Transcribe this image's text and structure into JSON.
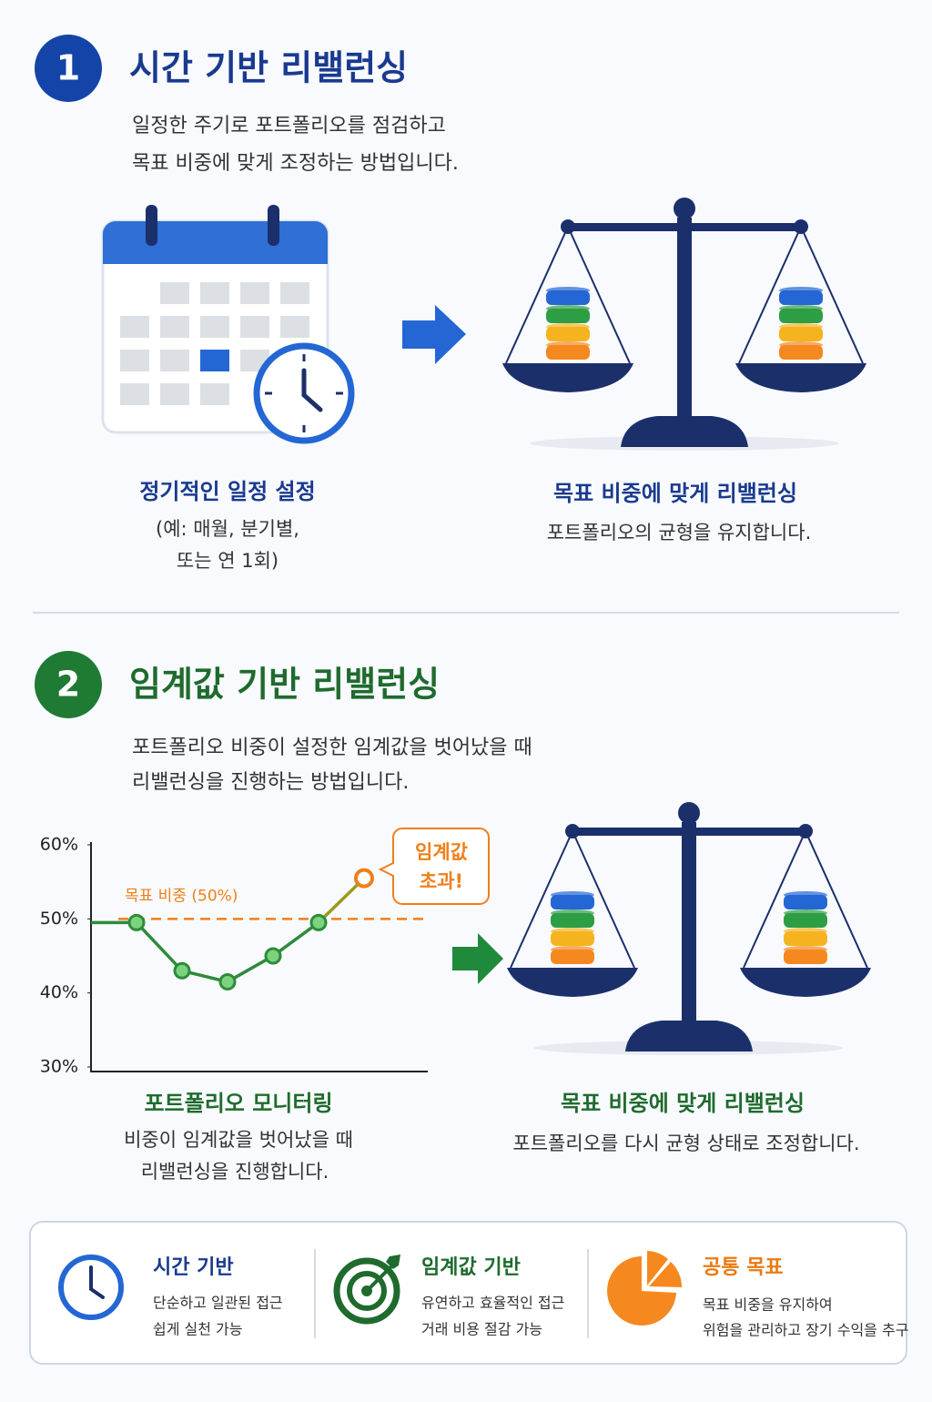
{
  "section1": {
    "number": "1",
    "title": "시간 기반 리밸런싱",
    "description": [
      "일정한 주기로 포트폴리오를 점검하고",
      "목표 비중에 맞게 조정하는 방법입니다."
    ],
    "left_caption": {
      "title": "정기적인 일정 설정",
      "lines": [
        "(예: 매월, 분기별,",
        "또는 연 1회)"
      ]
    },
    "right_caption": {
      "title": "목표 비중에 맞게 리밸런싱",
      "lines": [
        "포트폴리오의 균형을 유지합니다."
      ]
    }
  },
  "section2": {
    "number": "2",
    "title": "임계값 기반 리밸런싱",
    "description": [
      "포트폴리오 비중이 설정한 임계값을 벗어났을 때",
      "리밸런싱을 진행하는 방법입니다."
    ],
    "chart_data": {
      "type": "line",
      "categories": [
        null,
        null,
        null,
        null,
        null,
        null,
        null
      ],
      "values": [
        49.5,
        49.5,
        43,
        41.5,
        45,
        49.5,
        55.5
      ],
      "color": "#2e8b3a",
      "exceed_color": "#f07f1a",
      "threshold": 50,
      "threshold_label": "목표 비중 (50%)",
      "callout": [
        "임계값",
        "초과!"
      ],
      "ylim": [
        30,
        60
      ],
      "yticks": [
        {
          "value": 30,
          "label": "30%"
        },
        {
          "value": 40,
          "label": "40%"
        },
        {
          "value": 50,
          "label": "50%"
        },
        {
          "value": 60,
          "label": "60%"
        }
      ],
      "grid": false
    },
    "left_caption": {
      "title": "포트폴리오 모니터링",
      "lines": [
        "비중이 임계값을 벗어났을 때",
        "리밸런싱을 진행합니다."
      ]
    },
    "right_caption": {
      "title": "목표 비중에 맞게 리밸런싱",
      "lines": [
        "포트폴리오를 다시 균형 상태로 조정합니다."
      ]
    }
  },
  "summary": [
    {
      "title": "시간 기반",
      "lines": [
        "단순하고 일관된 접근",
        "쉽게 실천 가능"
      ]
    },
    {
      "title": "임계값 기반",
      "lines": [
        "유연하고 효율적인 접근",
        "거래 비용 절감 가능"
      ]
    },
    {
      "title": "공통 목표",
      "lines": [
        "목표 비중을 유지하여",
        "위험을 관리하고 장기 수익을 추구"
      ]
    }
  ]
}
